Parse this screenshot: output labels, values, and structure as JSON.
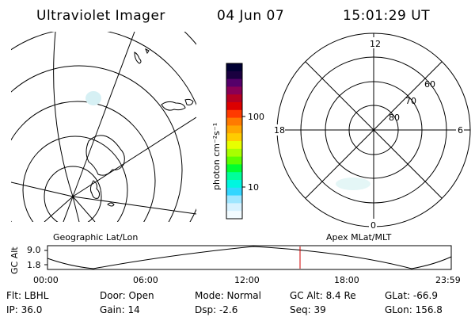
{
  "header": {
    "instrument": "Ultraviolet Imager",
    "date": "04 Jun 07",
    "time": "15:01:29 UT"
  },
  "colorbar": {
    "unit_label": "photon cm⁻²s⁻¹",
    "ticks": [
      "100",
      "10"
    ],
    "colors": [
      "#000033",
      "#1a0040",
      "#55006a",
      "#8a0055",
      "#b50022",
      "#dc0000",
      "#ff3a00",
      "#ff7a00",
      "#ffa600",
      "#ffcc00",
      "#e8ff00",
      "#a8ff00",
      "#5cff00",
      "#00ff30",
      "#00ff9a",
      "#00f6e0",
      "#33d6ff",
      "#9fe6ff",
      "#d8f2ff",
      "#f2fbff"
    ]
  },
  "left_panel": {
    "caption": "Geographic Lat/Lon"
  },
  "right_panel": {
    "caption": "Apex MLat/MLT",
    "mlt_labels": {
      "top": "12",
      "left": "18",
      "right": "6",
      "bottom": "0"
    },
    "lat_labels": [
      "60",
      "70",
      "80"
    ]
  },
  "alt_plot": {
    "ylabel": "GC Alt",
    "yticks": [
      "9.0",
      "1.8"
    ],
    "xticks": [
      "00:00",
      "06:00",
      "12:00",
      "18:00",
      "23:59"
    ],
    "marker_color": "#d00000"
  },
  "info": {
    "filter": "Flt: LBHL",
    "ip": "IP: 36.0",
    "door": "Door: Open",
    "gain": "Gain: 14",
    "mode": "Mode: Normal",
    "dsp": "Dsp:    -2.6",
    "gc_alt": "GC Alt: 8.4 Re",
    "seq": "Seq: 39",
    "glat": "GLat: -66.9",
    "glon": "GLon: 156.8"
  }
}
